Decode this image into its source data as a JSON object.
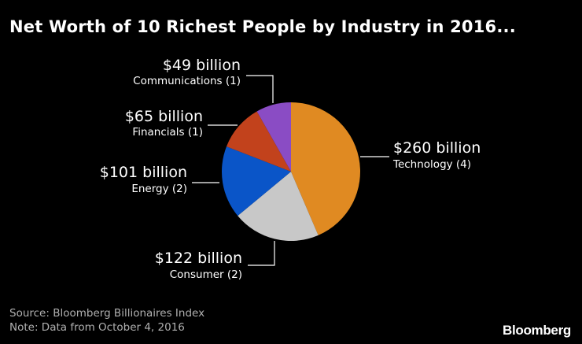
{
  "title": "Net Worth of 10 Richest People by Industry in 2016...",
  "footer": {
    "source": "Source: Bloomberg Billionaires Index",
    "note": "Note: Data from October 4, 2016"
  },
  "brand": "Bloomberg",
  "colors": {
    "background": "#000000",
    "Technology": "#E08A22",
    "Consumer": "#C8C8C8",
    "Energy": "#0A55C8",
    "Financials": "#C2421C",
    "Communications": "#8A4CC4"
  },
  "chart_data": {
    "type": "pie",
    "title": "Net Worth of 10 Richest People by Industry in 2016...",
    "slices": [
      {
        "category": "Technology",
        "count_label": "Technology (4)",
        "value": 260,
        "value_label": "$260 billion"
      },
      {
        "category": "Consumer",
        "count_label": "Consumer (2)",
        "value": 122,
        "value_label": "$122 billion"
      },
      {
        "category": "Energy",
        "count_label": "Energy (2)",
        "value": 101,
        "value_label": "$101 billion"
      },
      {
        "category": "Financials",
        "count_label": "Financials (1)",
        "value": 65,
        "value_label": "$65 billion"
      },
      {
        "category": "Communications",
        "count_label": "Communications (1)",
        "value": 49,
        "value_label": "$49 billion"
      }
    ]
  }
}
